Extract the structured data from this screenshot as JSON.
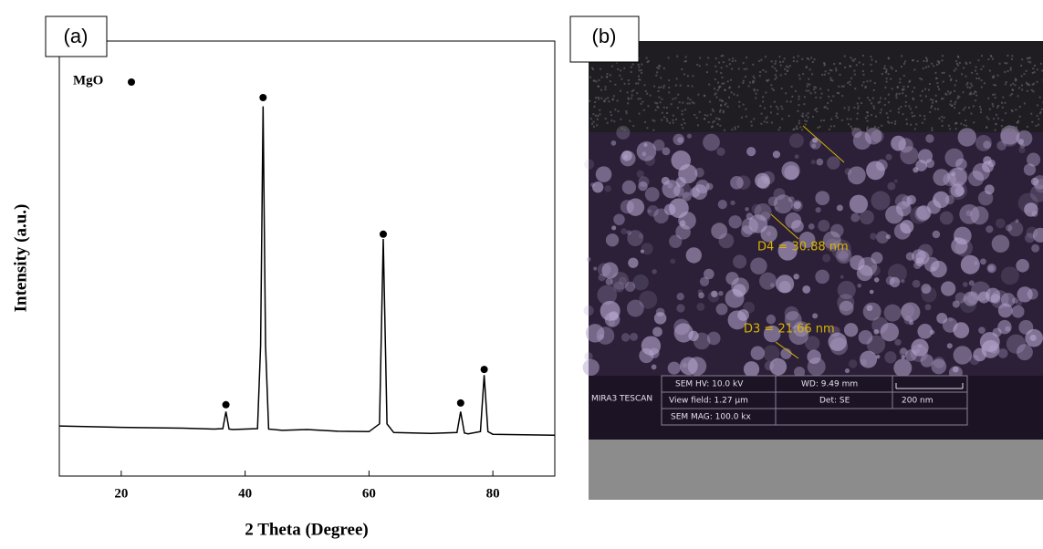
{
  "chart_data": {
    "type": "line",
    "panel_label": "(a)",
    "xlabel": "2 Theta (Degree)",
    "ylabel": "Intensity (a.u.)",
    "xlim": [
      10,
      90
    ],
    "xticks": [
      20,
      40,
      60,
      80
    ],
    "ylim": [
      0,
      100
    ],
    "series": [
      {
        "color": "#000000",
        "x": [
          10,
          20,
          30,
          35,
          36.4,
          36.9,
          37.4,
          38,
          42,
          42.5,
          42.9,
          43.3,
          43.8,
          46,
          50,
          55,
          60,
          61.7,
          62.3,
          62.9,
          64,
          70,
          74.2,
          74.8,
          75.4,
          76,
          78,
          78.6,
          79.2,
          80,
          85,
          90
        ],
        "values": [
          11.5,
          11.2,
          11,
          10.8,
          10.9,
          14.8,
          10.8,
          10.7,
          10.9,
          30,
          85,
          30,
          10.8,
          10.5,
          10.7,
          10.3,
          10.2,
          12,
          54.5,
          12,
          10,
          9.8,
          10,
          14.8,
          9.9,
          9.7,
          10.2,
          23.2,
          10.2,
          9.6,
          9.5,
          9.4
        ]
      }
    ],
    "markers": {
      "name": "MgO",
      "color": "#000000",
      "x": [
        36.9,
        42.9,
        62.3,
        74.8,
        78.6
      ],
      "values": [
        16.4,
        87,
        55.6,
        16.8,
        24.5
      ]
    }
  },
  "sem_image": {
    "panel_label": "(b)",
    "measurements": [
      "D4 = 30.88 nm",
      "D3 = 21.66 nm"
    ],
    "info": {
      "brand": "MIRA3 TESCAN",
      "hv": "SEM HV: 10.0 kV",
      "wd": "WD: 9.49 mm",
      "view_field": "View field: 1.27 µm",
      "det": "Det: SE",
      "mag": "SEM MAG: 100.0 kx",
      "scale": "200 nm"
    }
  }
}
